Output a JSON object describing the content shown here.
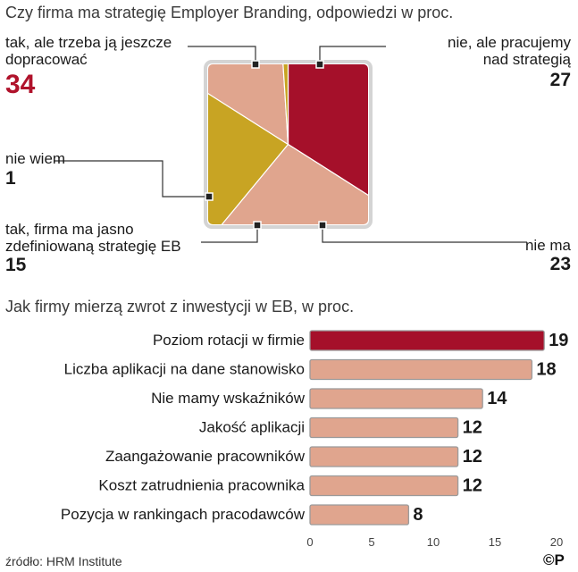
{
  "colors": {
    "highlight": "#a5102a",
    "salmon": "#e0a58e",
    "gold": "#c8a423",
    "frame": "#d4d4d4",
    "connector": "#333333"
  },
  "chart_data": [
    {
      "type": "pie",
      "title": "Czy firma ma strategię Employer Branding, odpowiedzi w proc.",
      "slices": [
        {
          "label": "tak, ale trzeba ją jeszcze\ndopracować",
          "value": 34,
          "color": "#a5102a"
        },
        {
          "label": "nie, ale pracujemy\nnad strategią",
          "value": 27,
          "color": "#e0a58e"
        },
        {
          "label": "nie ma",
          "value": 23,
          "color": "#c8a423"
        },
        {
          "label": "tak, firma ma jasno\nzdefiniowaną strategię EB",
          "value": 15,
          "color": "#e0a58e"
        },
        {
          "label": "nie wiem",
          "value": 1,
          "color": "#c8a423"
        }
      ]
    },
    {
      "type": "bar",
      "orientation": "horizontal",
      "title": "Jak firmy mierzą zwrot z inwestycji w EB, w proc.",
      "categories": [
        "Poziom rotacji w firmie",
        "Liczba aplikacji na dane stanowisko",
        "Nie mamy wskaźników",
        "Jakość aplikacji",
        "Zaangażowanie pracowników",
        "Koszt zatrudnienia pracownika",
        "Pozycja w rankingach pracodawców"
      ],
      "values": [
        19,
        18,
        14,
        12,
        12,
        12,
        8
      ],
      "xlim": [
        0,
        20
      ],
      "ticks": [
        0,
        5,
        10,
        15,
        20
      ],
      "highlight_index": 0
    }
  ],
  "source": "źródło: HRM Institute",
  "logo": "©P"
}
